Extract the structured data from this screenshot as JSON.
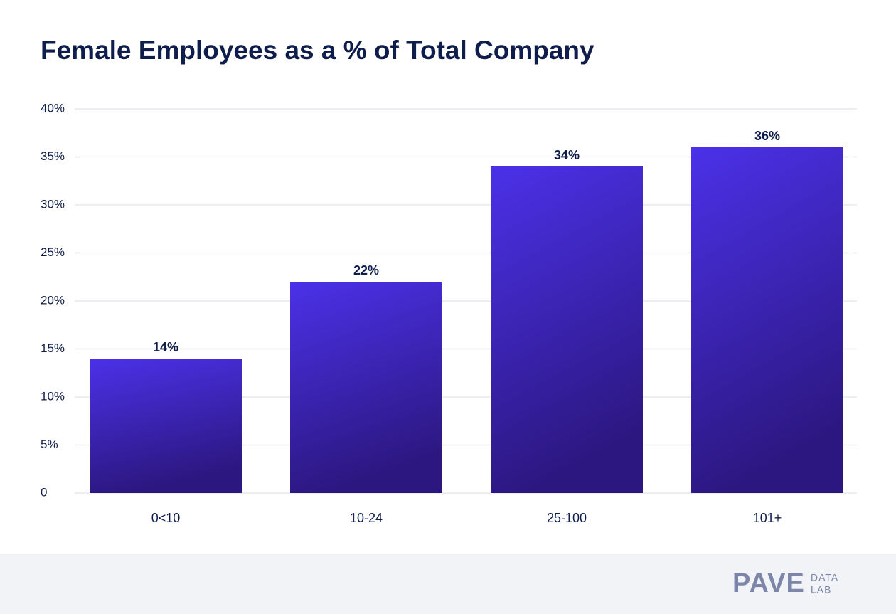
{
  "chart_data": {
    "type": "bar",
    "title": "Female Employees as a % of Total Company",
    "categories": [
      "0<10",
      "10-24",
      "25-100",
      "101+"
    ],
    "values": [
      14,
      22,
      34,
      36
    ],
    "value_labels": [
      "14%",
      "22%",
      "34%",
      "36%"
    ],
    "color": "#4b31e8",
    "ylim": [
      0,
      40
    ],
    "yticks": [
      0,
      {
        "value": 5,
        "label": "5%"
      },
      {
        "value": 10,
        "label": "10%"
      },
      {
        "value": 15,
        "label": "15%"
      },
      {
        "value": 20,
        "label": "20%"
      },
      {
        "value": 25,
        "label": "25%"
      },
      {
        "value": 30,
        "label": "30%"
      },
      {
        "value": 35,
        "label": "35%"
      },
      {
        "value": 40,
        "label": "40%"
      }
    ],
    "grid": true
  },
  "brand": {
    "name": "PAVE",
    "line1": "DATA",
    "line2": "LAB"
  }
}
